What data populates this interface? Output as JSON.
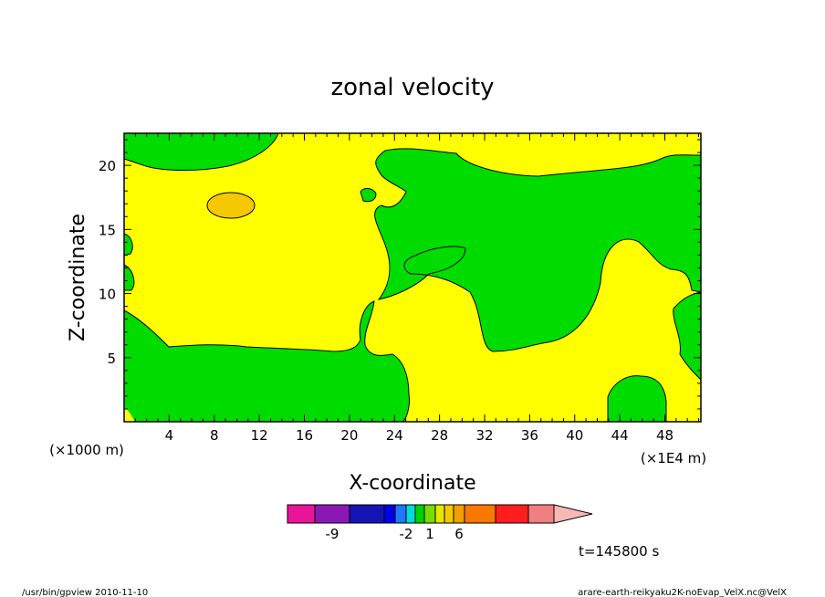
{
  "chart_data": {
    "type": "heatmap",
    "title": "zonal velocity",
    "xlabel": "X-coordinate",
    "ylabel": "Z-coordinate",
    "x_unit_label": "(×1E4 m)",
    "z_unit_label": "(×1000 m)",
    "x_ticks": [
      "4",
      "8",
      "12",
      "16",
      "20",
      "24",
      "28",
      "32",
      "36",
      "40",
      "44",
      "48"
    ],
    "y_ticks": [
      "5",
      "10",
      "15",
      "20"
    ],
    "xlim": [
      0,
      51.2
    ],
    "ylim": [
      0,
      22.5
    ],
    "time_label": "t=145800 s",
    "colorbar": {
      "colors": [
        "#e8159a",
        "#8a19b4",
        "#1414b4",
        "#0000e6",
        "#1e78ff",
        "#00dcdc",
        "#00d200",
        "#78dc00",
        "#e6e600",
        "#f5c800",
        "#f0a000",
        "#fa7800",
        "#ff1e1e",
        "#f08080",
        "#f8b8b8"
      ],
      "labels": [
        {
          "text": "-9",
          "index": 1.5
        },
        {
          "text": "-2",
          "index": 5
        },
        {
          "text": "1",
          "index": 7.5
        },
        {
          "text": "6",
          "index": 10.5
        }
      ]
    },
    "regions": [
      {
        "name": "green",
        "color": "#00dc00"
      },
      {
        "name": "yellow",
        "color": "#ffff00"
      },
      {
        "name": "orange",
        "color": "#f5c800"
      }
    ]
  },
  "footer": {
    "left": "/usr/bin/gpview   2010-11-10",
    "right": "arare-earth-reikyaku2K-noEvap_VelX.nc@VelX"
  }
}
